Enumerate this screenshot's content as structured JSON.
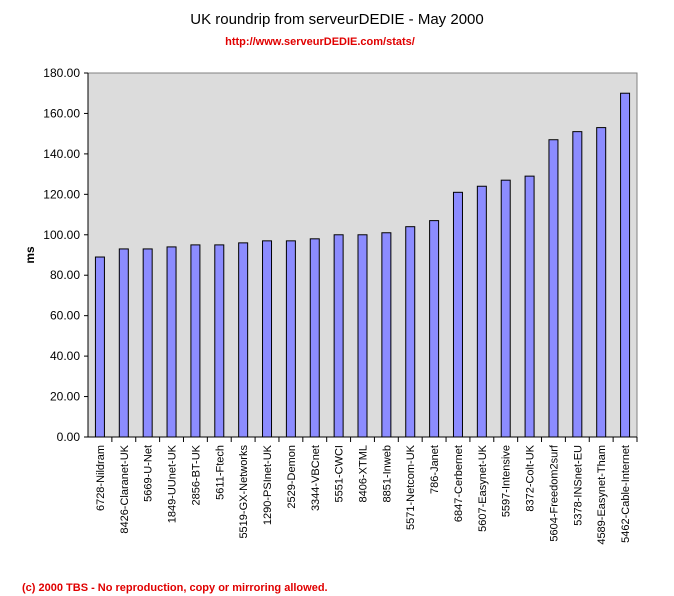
{
  "header": {
    "title": "UK roundrip from serveurDEDIE - May 2000",
    "subtitle": "http://www.serveurDEDIE.com/stats/"
  },
  "footer": {
    "text": "(c) 2000 TBS - No reproduction, copy or mirroring allowed."
  },
  "colors": {
    "plot_bg": "#dcdcdc",
    "bar_fill": "#8c8cff",
    "bar_stroke": "#000000",
    "title": "#000000",
    "accent_red": "#e00000"
  },
  "chart_data": {
    "type": "bar",
    "title": "UK roundrip from serveurDEDIE - May 2000",
    "subtitle": "http://www.serveurDEDIE.com/stats/",
    "xlabel": "",
    "ylabel": "ms",
    "ylim": [
      0,
      180
    ],
    "ytick_step": 20,
    "ytick_labels": [
      "0.00",
      "20.00",
      "40.00",
      "60.00",
      "80.00",
      "100.00",
      "120.00",
      "140.00",
      "160.00",
      "180.00"
    ],
    "grid": false,
    "categories": [
      "6728-Nildram",
      "8426-Claranet-UK",
      "5669-U-Net",
      "1849-UUnet-UK",
      "2856-BT-UK",
      "5611-Ftech",
      "5519-GX-Networks",
      "1290-PSInet-UK",
      "2529-Demon",
      "3344-VBCnet",
      "5551-CWCI",
      "8406-XTML",
      "8851-Inweb",
      "5571-Netcom-UK",
      "786-Janet",
      "6847-Cerbernet",
      "5607-Easynet-UK",
      "5597-Intensive",
      "8372-Colt-UK",
      "5604-Freedom2surf",
      "5378-INSnet-EU",
      "4589-Easynet-Tham",
      "5462-Cable-Internet"
    ],
    "values": [
      89,
      93,
      93,
      94,
      95,
      95,
      96,
      97,
      97,
      98,
      100,
      100,
      101,
      104,
      107,
      121,
      124,
      127,
      129,
      147,
      151,
      153,
      170
    ]
  }
}
